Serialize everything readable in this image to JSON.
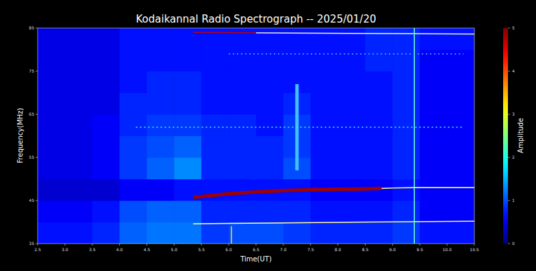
{
  "chart_data": {
    "type": "heatmap",
    "title": "Kodaikannal Radio Spectrograph -- 2025/01/20",
    "x_label": "Time(UT)",
    "y_label": "Frequency(MHz)",
    "colorbar_label": "Amplitude",
    "xlim": [
      2.5,
      10.5
    ],
    "ylim": [
      35,
      85
    ],
    "xticks": [
      {
        "value": 2.5,
        "label": "2.5"
      },
      {
        "value": 3,
        "label": "3.0"
      },
      {
        "value": 3.5,
        "label": "3.5"
      },
      {
        "value": 4,
        "label": "4.0"
      },
      {
        "value": 4.5,
        "label": "4.5"
      },
      {
        "value": 5,
        "label": "5.0"
      },
      {
        "value": 5.5,
        "label": "5.5"
      },
      {
        "value": 6,
        "label": "6.0"
      },
      {
        "value": 6.5,
        "label": "6.5"
      },
      {
        "value": 7,
        "label": "7.0"
      },
      {
        "value": 7.5,
        "label": "7.5"
      },
      {
        "value": 8,
        "label": "8.0"
      },
      {
        "value": 8.5,
        "label": "8.5"
      },
      {
        "value": 9,
        "label": "9.0"
      },
      {
        "value": 9.5,
        "label": "9.5"
      },
      {
        "value": 10,
        "label": "10.0"
      },
      {
        "value": 10.5,
        "label": "10.5"
      }
    ],
    "yticks": [
      35,
      45,
      55,
      65,
      75,
      85
    ],
    "xbins": [
      2.5,
      3.0,
      3.5,
      4.0,
      4.5,
      5.0,
      5.5,
      6.0,
      6.5,
      7.0,
      7.5,
      8.0,
      8.5,
      9.0,
      9.5,
      10.0,
      10.5
    ],
    "ybins": [
      35,
      40,
      45,
      50,
      55,
      60,
      65,
      70,
      75,
      80,
      85
    ],
    "z": [
      [
        0.7,
        0.7,
        0.8,
        1.1,
        1.2,
        1.2,
        0.9,
        1.0,
        1.0,
        0.9,
        0.8,
        0.8,
        0.8,
        0.9,
        0.7,
        0.7
      ],
      [
        0.6,
        0.6,
        0.7,
        1.0,
        1.1,
        1.1,
        0.8,
        0.8,
        0.8,
        0.8,
        0.7,
        0.7,
        0.7,
        0.8,
        0.6,
        0.6
      ],
      [
        0.4,
        0.4,
        0.4,
        0.6,
        0.6,
        0.7,
        0.7,
        0.7,
        0.7,
        0.7,
        0.6,
        0.6,
        0.6,
        0.7,
        0.6,
        0.6
      ],
      [
        0.5,
        0.5,
        0.6,
        0.9,
        1.1,
        1.3,
        0.8,
        0.8,
        0.8,
        1.0,
        0.7,
        0.7,
        0.7,
        0.8,
        0.6,
        0.6
      ],
      [
        0.5,
        0.5,
        0.6,
        0.9,
        1.0,
        1.1,
        0.8,
        0.8,
        0.8,
        0.9,
        0.7,
        0.7,
        0.7,
        0.8,
        0.6,
        0.6
      ],
      [
        0.5,
        0.5,
        0.6,
        0.8,
        0.9,
        0.9,
        0.8,
        0.8,
        0.7,
        0.9,
        0.7,
        0.7,
        0.7,
        0.8,
        0.6,
        0.6
      ],
      [
        0.5,
        0.5,
        0.5,
        0.8,
        0.8,
        0.8,
        0.7,
        0.7,
        0.7,
        0.8,
        0.7,
        0.7,
        0.7,
        0.8,
        0.6,
        0.6
      ],
      [
        0.5,
        0.5,
        0.5,
        0.7,
        0.8,
        0.8,
        0.7,
        0.7,
        0.7,
        0.7,
        0.7,
        0.7,
        0.7,
        0.8,
        0.6,
        0.6
      ],
      [
        0.5,
        0.5,
        0.5,
        0.7,
        0.7,
        0.7,
        0.7,
        0.7,
        0.7,
        0.7,
        0.7,
        0.7,
        0.8,
        0.8,
        0.6,
        0.6
      ],
      [
        0.5,
        0.5,
        0.5,
        0.7,
        0.7,
        0.7,
        0.7,
        0.7,
        0.7,
        0.7,
        0.7,
        0.7,
        0.8,
        0.8,
        0.7,
        0.7
      ]
    ],
    "clim": [
      0,
      5
    ],
    "cticks": [
      0,
      1,
      2,
      3,
      4,
      5
    ],
    "series": [
      {
        "type": "line",
        "color": "#a00000",
        "line_style": "thick",
        "x": [
          5.35,
          5.5,
          6.0,
          6.5,
          7.0,
          7.5,
          8.0,
          8.5,
          8.8
        ],
        "values": [
          45.8,
          45.9,
          46.6,
          47.0,
          47.3,
          47.5,
          47.6,
          47.7,
          47.8
        ]
      },
      {
        "type": "line",
        "color": "#f0f080",
        "line_style": "solid",
        "x": [
          8.8,
          9.0,
          9.4,
          10.0,
          10.5
        ],
        "values": [
          47.8,
          47.9,
          48.0,
          48.0,
          48.0
        ]
      },
      {
        "type": "line",
        "color": "#c00000",
        "line_style": "solid",
        "x": [
          5.35,
          6.5
        ],
        "values": [
          84.0,
          83.9
        ]
      },
      {
        "type": "line",
        "color": "#f0f0c0",
        "line_style": "solid",
        "x": [
          6.5,
          10.5
        ],
        "values": [
          83.9,
          83.6
        ]
      },
      {
        "type": "line",
        "color": "#ffff90",
        "line_style": "solid",
        "x": [
          5.35,
          7.0,
          8.5,
          10.5
        ],
        "values": [
          39.6,
          39.8,
          40.0,
          40.2
        ]
      },
      {
        "type": "line",
        "color": "#70ffd0",
        "line_style": "solid",
        "x": [
          9.4,
          9.4
        ],
        "values": [
          35,
          85
        ]
      },
      {
        "type": "line",
        "color": "#ffd700",
        "line_style": "solid",
        "x": [
          6.05,
          6.05
        ],
        "values": [
          35,
          39
        ]
      },
      {
        "type": "line",
        "color": "#40c0ff",
        "line_style": "thick",
        "x": [
          7.25,
          7.25
        ],
        "values": [
          52,
          72
        ]
      },
      {
        "type": "line",
        "color": "#40e0d0",
        "line_style": "dotted",
        "x": [
          4.3,
          10.3
        ],
        "values": [
          62,
          62
        ]
      },
      {
        "type": "line",
        "color": "#40c0e0",
        "line_style": "dotted",
        "x": [
          6.0,
          10.3
        ],
        "values": [
          79,
          79
        ]
      }
    ]
  }
}
